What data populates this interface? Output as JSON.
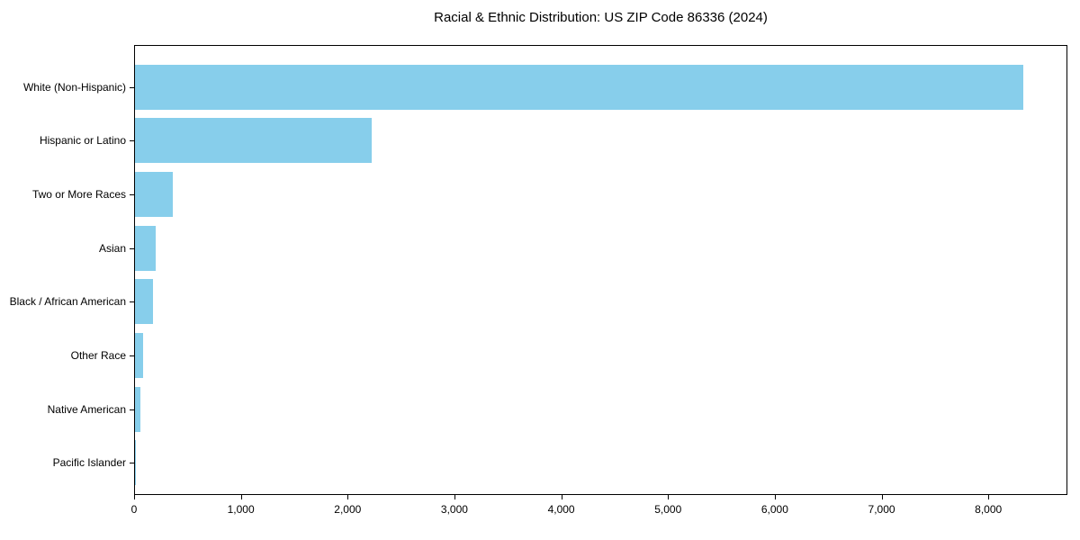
{
  "chart_data": {
    "type": "bar",
    "orientation": "horizontal",
    "title": "Racial & Ethnic Distribution: US ZIP Code 86336 (2024)",
    "categories": [
      "White (Non-Hispanic)",
      "Hispanic or Latino",
      "Two or More Races",
      "Asian",
      "Black / African American",
      "Other Race",
      "Native American",
      "Pacific Islander"
    ],
    "values": [
      8320,
      2215,
      355,
      190,
      165,
      80,
      50,
      5
    ],
    "title_position": "top-center",
    "xlabel": "",
    "ylabel": "",
    "xlim": [
      0,
      8740
    ],
    "x_ticks": [
      0,
      1000,
      2000,
      3000,
      4000,
      5000,
      6000,
      7000,
      8000
    ],
    "x_tick_labels": [
      "0",
      "1,000",
      "2,000",
      "3,000",
      "4,000",
      "5,000",
      "6,000",
      "7,000",
      "8,000"
    ],
    "bar_color": "#87CEEB",
    "axis_color": "#000000",
    "background_color": "#ffffff",
    "grid": false,
    "legend": null
  }
}
